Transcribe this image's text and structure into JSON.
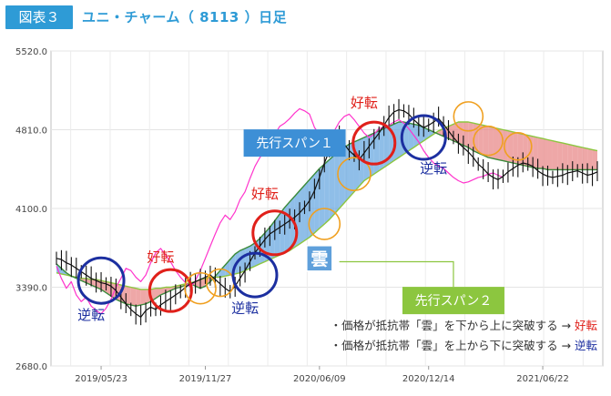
{
  "header": {
    "badge": "図表３",
    "title": "ユニ・チャーム（ 8113 ）日足"
  },
  "colors": {
    "accent": "#2e9bd6",
    "price": "#111111",
    "chikou": "#ff33cc",
    "span1": "#3a8a3a",
    "span2": "#8cc63f",
    "cloud_bull": "#6aa8e0",
    "cloud_bear": "#e88a8a",
    "ring_red": "#e0201a",
    "ring_blue": "#1c2fa0",
    "ring_orange": "#f0a020",
    "callout_blue": "#3d8fd6",
    "callout_green": "#8cc63f",
    "text_red": "#e0201a",
    "text_blue": "#1c2fa0"
  },
  "chart_data": {
    "type": "line",
    "title": "ユニ・チャーム（ 8113 ）日足",
    "ylim": [
      2680,
      5520
    ],
    "y_ticks": [
      "5520.0",
      "4810.0",
      "4100.0",
      "3390.0",
      "2680.0"
    ],
    "y_tick_values": [
      5520,
      4810,
      4100,
      3390,
      2680
    ],
    "x_ticks": [
      "2019/05/23",
      "2019/11/27",
      "2020/06/09",
      "2020/12/14",
      "2021/06/22"
    ],
    "x_tick_index": [
      9,
      30,
      53,
      75,
      98
    ],
    "n_periods": 110,
    "grid": true,
    "series": [
      {
        "key": "price",
        "values": [
          3650,
          3640,
          3610,
          3590,
          3560,
          3530,
          3500,
          3470,
          3450,
          3430,
          3420,
          3400,
          3360,
          3300,
          3240,
          3190,
          3150,
          3120,
          3180,
          3210,
          3190,
          3230,
          3260,
          3290,
          3320,
          3350,
          3390,
          3420,
          3440,
          3460,
          3480,
          3500,
          3460,
          3420,
          3380,
          3350,
          3400,
          3470,
          3540,
          3620,
          3700,
          3760,
          3820,
          3870,
          3900,
          3930,
          3960,
          3990,
          4020,
          4060,
          4110,
          4170,
          4260,
          4380,
          4510,
          4620,
          4700,
          4740,
          4680,
          4620,
          4580,
          4540,
          4600,
          4660,
          4720,
          4780,
          4850,
          4920,
          4970,
          4990,
          4980,
          4950,
          4900,
          4860,
          4830,
          4850,
          4880,
          4910,
          4860,
          4800,
          4740,
          4690,
          4650,
          4610,
          4560,
          4500,
          4460,
          4410,
          4380,
          4360,
          4390,
          4430,
          4460,
          4490,
          4510,
          4500,
          4480,
          4440,
          4410,
          4390,
          4380,
          4390,
          4400,
          4420,
          4430,
          4440,
          4420,
          4400,
          4410,
          4430
        ]
      },
      {
        "key": "chikou",
        "values": [
          3580,
          3470,
          3380,
          3440,
          3320,
          3260,
          3300,
          3220,
          3180,
          3150,
          3200,
          3280,
          3390,
          3470,
          3560,
          3540,
          3480,
          3440,
          3500,
          3610,
          3700,
          3740,
          3680,
          3620,
          3540,
          3480,
          3430,
          3390,
          3450,
          3540,
          3650,
          3760,
          3870,
          3970,
          4040,
          4000,
          4070,
          4180,
          4250,
          4370,
          4480,
          4560,
          4620,
          4700,
          4770,
          4840,
          4870,
          4910,
          4960,
          5000,
          4980,
          4950,
          4830,
          4770,
          4710,
          4700,
          4800,
          4880,
          4930,
          4950,
          4900,
          4840,
          4780,
          4740,
          4770,
          4820,
          4830,
          4850,
          4880,
          4900,
          4870,
          4820,
          4760,
          4700,
          4620,
          4560,
          4510,
          4480,
          4460,
          4420,
          4380,
          4350,
          4330,
          4340,
          4360,
          4380,
          4390,
          4410,
          4420,
          4400,
          4380,
          null,
          null,
          null,
          null,
          null,
          null,
          null,
          null,
          null,
          null,
          null,
          null,
          null,
          null,
          null,
          null,
          null,
          null,
          null
        ]
      },
      {
        "key": "span1",
        "values": [
          3600,
          3560,
          3520,
          3490,
          3470,
          3450,
          3430,
          3410,
          3390,
          3370,
          3340,
          3310,
          3280,
          3260,
          3240,
          3230,
          3220,
          3230,
          3240,
          3260,
          3290,
          3320,
          3340,
          3360,
          3380,
          3390,
          3410,
          3420,
          3400,
          3380,
          3400,
          3440,
          3490,
          3540,
          3590,
          3640,
          3690,
          3720,
          3740,
          3760,
          3790,
          3830,
          3880,
          3930,
          3990,
          4050,
          4110,
          4160,
          4210,
          4260,
          4310,
          4360,
          4410,
          4460,
          4500,
          4540,
          4580,
          4620,
          4650,
          4680,
          4700,
          4720,
          4740,
          4760,
          4780,
          4800,
          4820,
          4840,
          4860,
          4880,
          4880,
          4870,
          4860,
          4850,
          4830,
          4810,
          4790,
          4770,
          4750,
          4730,
          4710,
          4690,
          4670,
          4650,
          4620,
          4600,
          4580,
          4560,
          4550,
          4540,
          4530,
          4520,
          4510,
          4500,
          4490,
          4480,
          4470,
          4460,
          4460,
          4450,
          4450,
          4450,
          4450,
          4450,
          4450,
          4450,
          4450,
          4450,
          4450,
          4450
        ]
      },
      {
        "key": "span2",
        "values": [
          3520,
          3510,
          3500,
          3490,
          3480,
          3470,
          3470,
          3460,
          3460,
          3450,
          3440,
          3430,
          3420,
          3410,
          3400,
          3390,
          3380,
          3370,
          3370,
          3370,
          3380,
          3380,
          3390,
          3390,
          3400,
          3410,
          3420,
          3430,
          3440,
          3460,
          3470,
          3480,
          3480,
          3480,
          3490,
          3500,
          3510,
          3520,
          3540,
          3560,
          3580,
          3600,
          3620,
          3640,
          3660,
          3680,
          3700,
          3720,
          3750,
          3780,
          3810,
          3840,
          3880,
          3920,
          3960,
          4000,
          4050,
          4100,
          4150,
          4200,
          4250,
          4300,
          4350,
          4380,
          4410,
          4440,
          4470,
          4500,
          4530,
          4560,
          4590,
          4620,
          4650,
          4680,
          4710,
          4740,
          4770,
          4800,
          4820,
          4840,
          4860,
          4880,
          4880,
          4880,
          4870,
          4860,
          4850,
          4840,
          4830,
          4820,
          4810,
          4800,
          4790,
          4780,
          4770,
          4760,
          4750,
          4740,
          4730,
          4720,
          4710,
          4700,
          4690,
          4680,
          4670,
          4660,
          4650,
          4640,
          4630,
          4620
        ]
      }
    ]
  },
  "annotations": {
    "markers": [
      {
        "type": "blue",
        "i": 9,
        "v": 3450,
        "r": 25
      },
      {
        "type": "red",
        "i": 23,
        "v": 3360,
        "r": 23
      },
      {
        "type": "orange",
        "i": 29,
        "v": 3380,
        "r": 17
      },
      {
        "type": "orange",
        "i": 33,
        "v": 3430,
        "r": 15
      },
      {
        "type": "blue",
        "i": 40,
        "v": 3500,
        "r": 24
      },
      {
        "type": "red",
        "i": 44,
        "v": 3880,
        "r": 24
      },
      {
        "type": "orange",
        "i": 54,
        "v": 3960,
        "r": 17
      },
      {
        "type": "orange",
        "i": 60,
        "v": 4410,
        "r": 18
      },
      {
        "type": "red",
        "i": 64,
        "v": 4690,
        "r": 23
      },
      {
        "type": "blue",
        "i": 74,
        "v": 4740,
        "r": 24
      },
      {
        "type": "orange",
        "i": 83,
        "v": 4930,
        "r": 16
      },
      {
        "type": "orange",
        "i": 87,
        "v": 4710,
        "r": 16
      },
      {
        "type": "orange",
        "i": 93,
        "v": 4660,
        "r": 15
      }
    ],
    "labels": [
      {
        "key": "gyakuten1",
        "text": "逆転",
        "color": "blue",
        "i": 7,
        "v": 3100
      },
      {
        "key": "kouten1",
        "text": "好転",
        "color": "red",
        "i": 21,
        "v": 3620
      },
      {
        "key": "gyakuten2",
        "text": "逆転",
        "color": "blue",
        "i": 38,
        "v": 3160
      },
      {
        "key": "kouten2",
        "text": "好転",
        "color": "red",
        "i": 42,
        "v": 4190
      },
      {
        "key": "kouten3",
        "text": "好転",
        "color": "red",
        "i": 62,
        "v": 5010
      },
      {
        "key": "gyakuten3",
        "text": "逆転",
        "color": "blue",
        "i": 76,
        "v": 4420
      }
    ],
    "kumo": {
      "text": "雲",
      "i": 53,
      "v": 3650
    },
    "callouts": [
      {
        "key": "span1",
        "text": "先行スパン１",
        "color": "callout_blue",
        "i": 48,
        "v": 4690,
        "tip_i": 56,
        "tip_v": 4650,
        "anchor": "right"
      },
      {
        "key": "span2",
        "text": "先行スパン２",
        "color": "callout_green",
        "i": 80,
        "v": 3270,
        "tip_i": 57,
        "tip_v": 3620,
        "anchor": "top"
      }
    ],
    "notes": [
      {
        "prefix": "・価格が抵抗帯「雲」を下から上に突破する → ",
        "result": "好転",
        "color": "red"
      },
      {
        "prefix": "・価格が抵抗帯「雲」を上から下に突破する → ",
        "result": "逆転",
        "color": "blue"
      }
    ]
  }
}
